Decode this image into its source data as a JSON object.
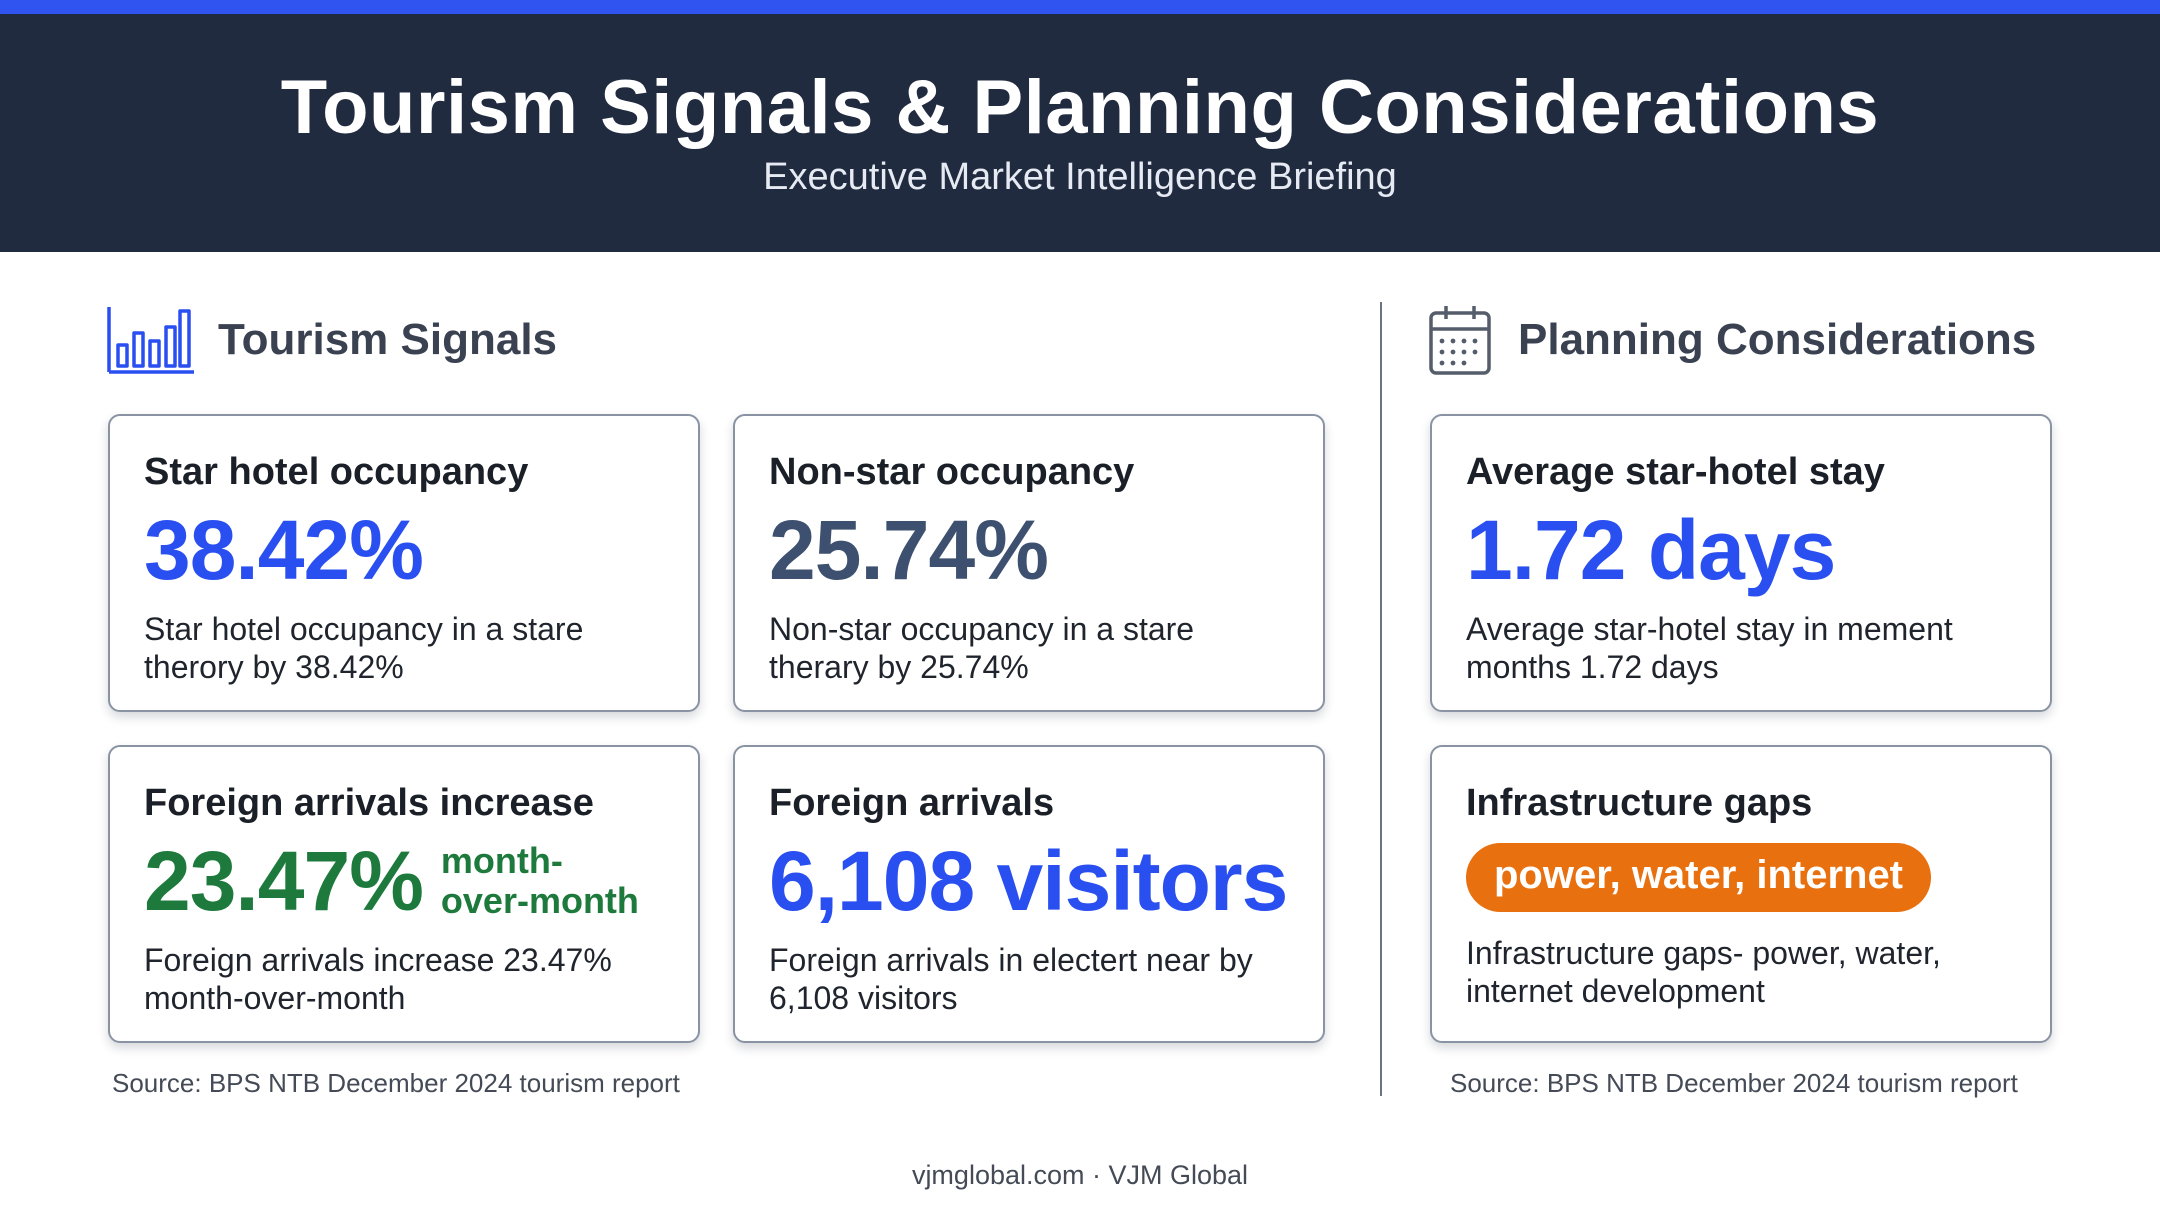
{
  "header": {
    "title": "Tourism Signals & Planning Considerations",
    "subtitle": "Executive Market Intelligence Briefing"
  },
  "colors": {
    "accent_bar": "#2f54f0",
    "header_bg": "#212b40",
    "value_blue": "#2a4ff0",
    "value_slate": "#3d5070",
    "value_green": "#1d7a3c",
    "pill_orange": "#e8700e"
  },
  "signals": {
    "heading": "Tourism Signals",
    "icon": "bar-chart-icon",
    "cards": [
      {
        "title": "Star hotel occupancy",
        "value": "38.42%",
        "description": "Star hotel occupancy in a stare therory by 38.42%"
      },
      {
        "title": "Non-star occupancy",
        "value": "25.74%",
        "description": "Non-star occupancy in a stare therary by 25.74%"
      },
      {
        "title": "Foreign arrivals increase",
        "value": "23.47%",
        "value_suffix_line1": "month-",
        "value_suffix_line2": "over-month",
        "description": "Foreign arrivals increase 23.47% month-over-month"
      },
      {
        "title": "Foreign arrivals",
        "value": "6,108 visitors",
        "description": "Foreign arrivals in electert near by 6,108 visitors"
      }
    ],
    "source": "Source: BPS NTB December 2024 tourism report"
  },
  "planning": {
    "heading": "Planning Considerations",
    "icon": "calendar-icon",
    "cards": [
      {
        "title": "Average star-hotel stay",
        "value": "1.72 days",
        "description": "Average star-hotel stay in mement months 1.72 days"
      },
      {
        "title": "Infrastructure gaps",
        "pill": "power, water, internet",
        "description": "Infrastructure gaps- power, water, internet development"
      }
    ],
    "source": "Source: BPS NTB December 2024 tourism report"
  },
  "footer": {
    "text": "vjmglobal.com · VJM Global"
  }
}
